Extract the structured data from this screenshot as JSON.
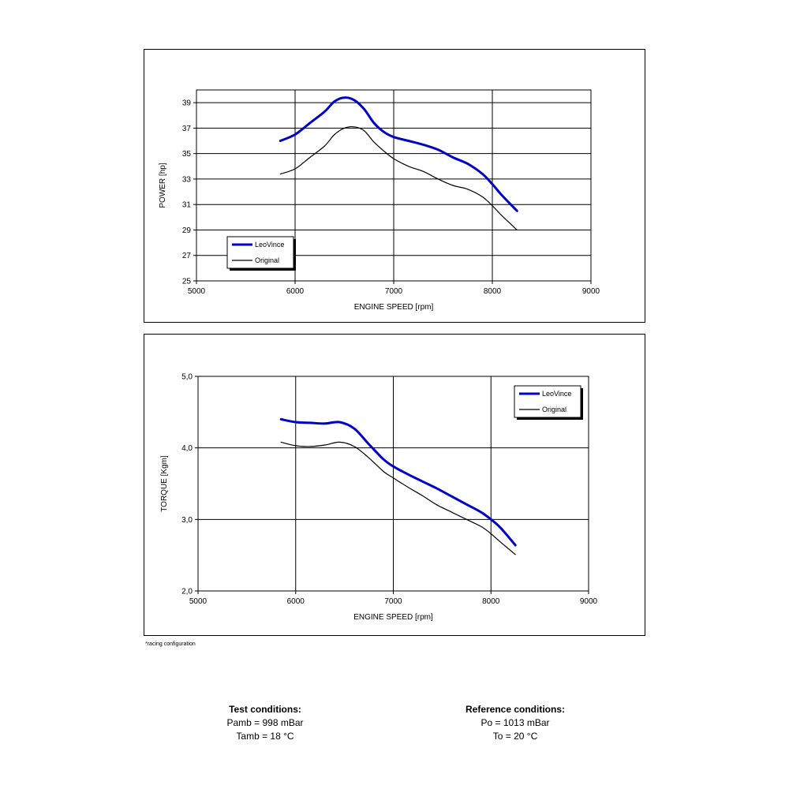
{
  "chart_data": [
    {
      "type": "line",
      "xlabel": "ENGINE SPEED [rpm]",
      "ylabel": "POWER [hp]",
      "xlim": [
        5000,
        9000
      ],
      "ylim": [
        25,
        40
      ],
      "x_ticks": [
        "5000",
        "6000",
        "7000",
        "8000",
        "9000"
      ],
      "y_ticks": [
        "25",
        "27",
        "29",
        "31",
        "33",
        "35",
        "37",
        "39"
      ],
      "grid": true,
      "legend_position": "bottom-left",
      "series": [
        {
          "name": "LeoVince",
          "color": "#0000c8",
          "x": [
            5850,
            6000,
            6150,
            6300,
            6400,
            6500,
            6600,
            6700,
            6800,
            6900,
            7000,
            7150,
            7300,
            7450,
            7600,
            7750,
            7900,
            8000,
            8100,
            8250
          ],
          "y": [
            36.0,
            36.5,
            37.4,
            38.3,
            39.1,
            39.4,
            39.2,
            38.5,
            37.4,
            36.7,
            36.3,
            36.0,
            35.7,
            35.3,
            34.7,
            34.2,
            33.4,
            32.6,
            31.7,
            30.5
          ]
        },
        {
          "name": "Original",
          "color": "#000000",
          "x": [
            5850,
            6000,
            6150,
            6300,
            6400,
            6500,
            6600,
            6700,
            6800,
            6900,
            7000,
            7150,
            7300,
            7450,
            7600,
            7750,
            7900,
            8000,
            8100,
            8250
          ],
          "y": [
            33.4,
            33.8,
            34.7,
            35.6,
            36.5,
            37.0,
            37.1,
            36.8,
            35.9,
            35.2,
            34.6,
            34.0,
            33.6,
            33.0,
            32.5,
            32.2,
            31.6,
            30.9,
            30.1,
            29.0
          ]
        }
      ]
    },
    {
      "type": "line",
      "xlabel": "ENGINE SPEED [rpm]",
      "ylabel": "TORQUE [Kgm]",
      "xlim": [
        5000,
        9000
      ],
      "ylim": [
        2.0,
        5.0
      ],
      "x_ticks": [
        "5000",
        "6000",
        "7000",
        "8000",
        "9000"
      ],
      "y_ticks": [
        "2,0",
        "3,0",
        "4,0",
        "5,0"
      ],
      "grid": true,
      "legend_position": "top-right",
      "series": [
        {
          "name": "LeoVince",
          "color": "#0000c8",
          "x": [
            5850,
            6000,
            6150,
            6300,
            6450,
            6600,
            6750,
            6900,
            7000,
            7150,
            7300,
            7450,
            7600,
            7750,
            7900,
            8000,
            8100,
            8250
          ],
          "y": [
            4.4,
            4.36,
            4.35,
            4.34,
            4.36,
            4.27,
            4.05,
            3.84,
            3.74,
            3.63,
            3.53,
            3.43,
            3.32,
            3.21,
            3.1,
            3.0,
            2.88,
            2.64
          ]
        },
        {
          "name": "Original",
          "color": "#000000",
          "x": [
            5850,
            6000,
            6150,
            6300,
            6450,
            6600,
            6750,
            6900,
            7000,
            7150,
            7300,
            7450,
            7600,
            7750,
            7900,
            8000,
            8100,
            8250
          ],
          "y": [
            4.08,
            4.03,
            4.02,
            4.04,
            4.08,
            4.02,
            3.86,
            3.67,
            3.58,
            3.45,
            3.33,
            3.2,
            3.1,
            3.0,
            2.9,
            2.8,
            2.68,
            2.51
          ]
        }
      ]
    }
  ],
  "footnote": "*racing configuration",
  "test_conditions": {
    "title": "Test conditions:",
    "line1": "Pamb = 998 mBar",
    "line2": "Tamb = 18 °C"
  },
  "reference_conditions": {
    "title": "Reference conditions:",
    "line1": "Po = 1013 mBar",
    "line2": "To = 20 °C"
  }
}
